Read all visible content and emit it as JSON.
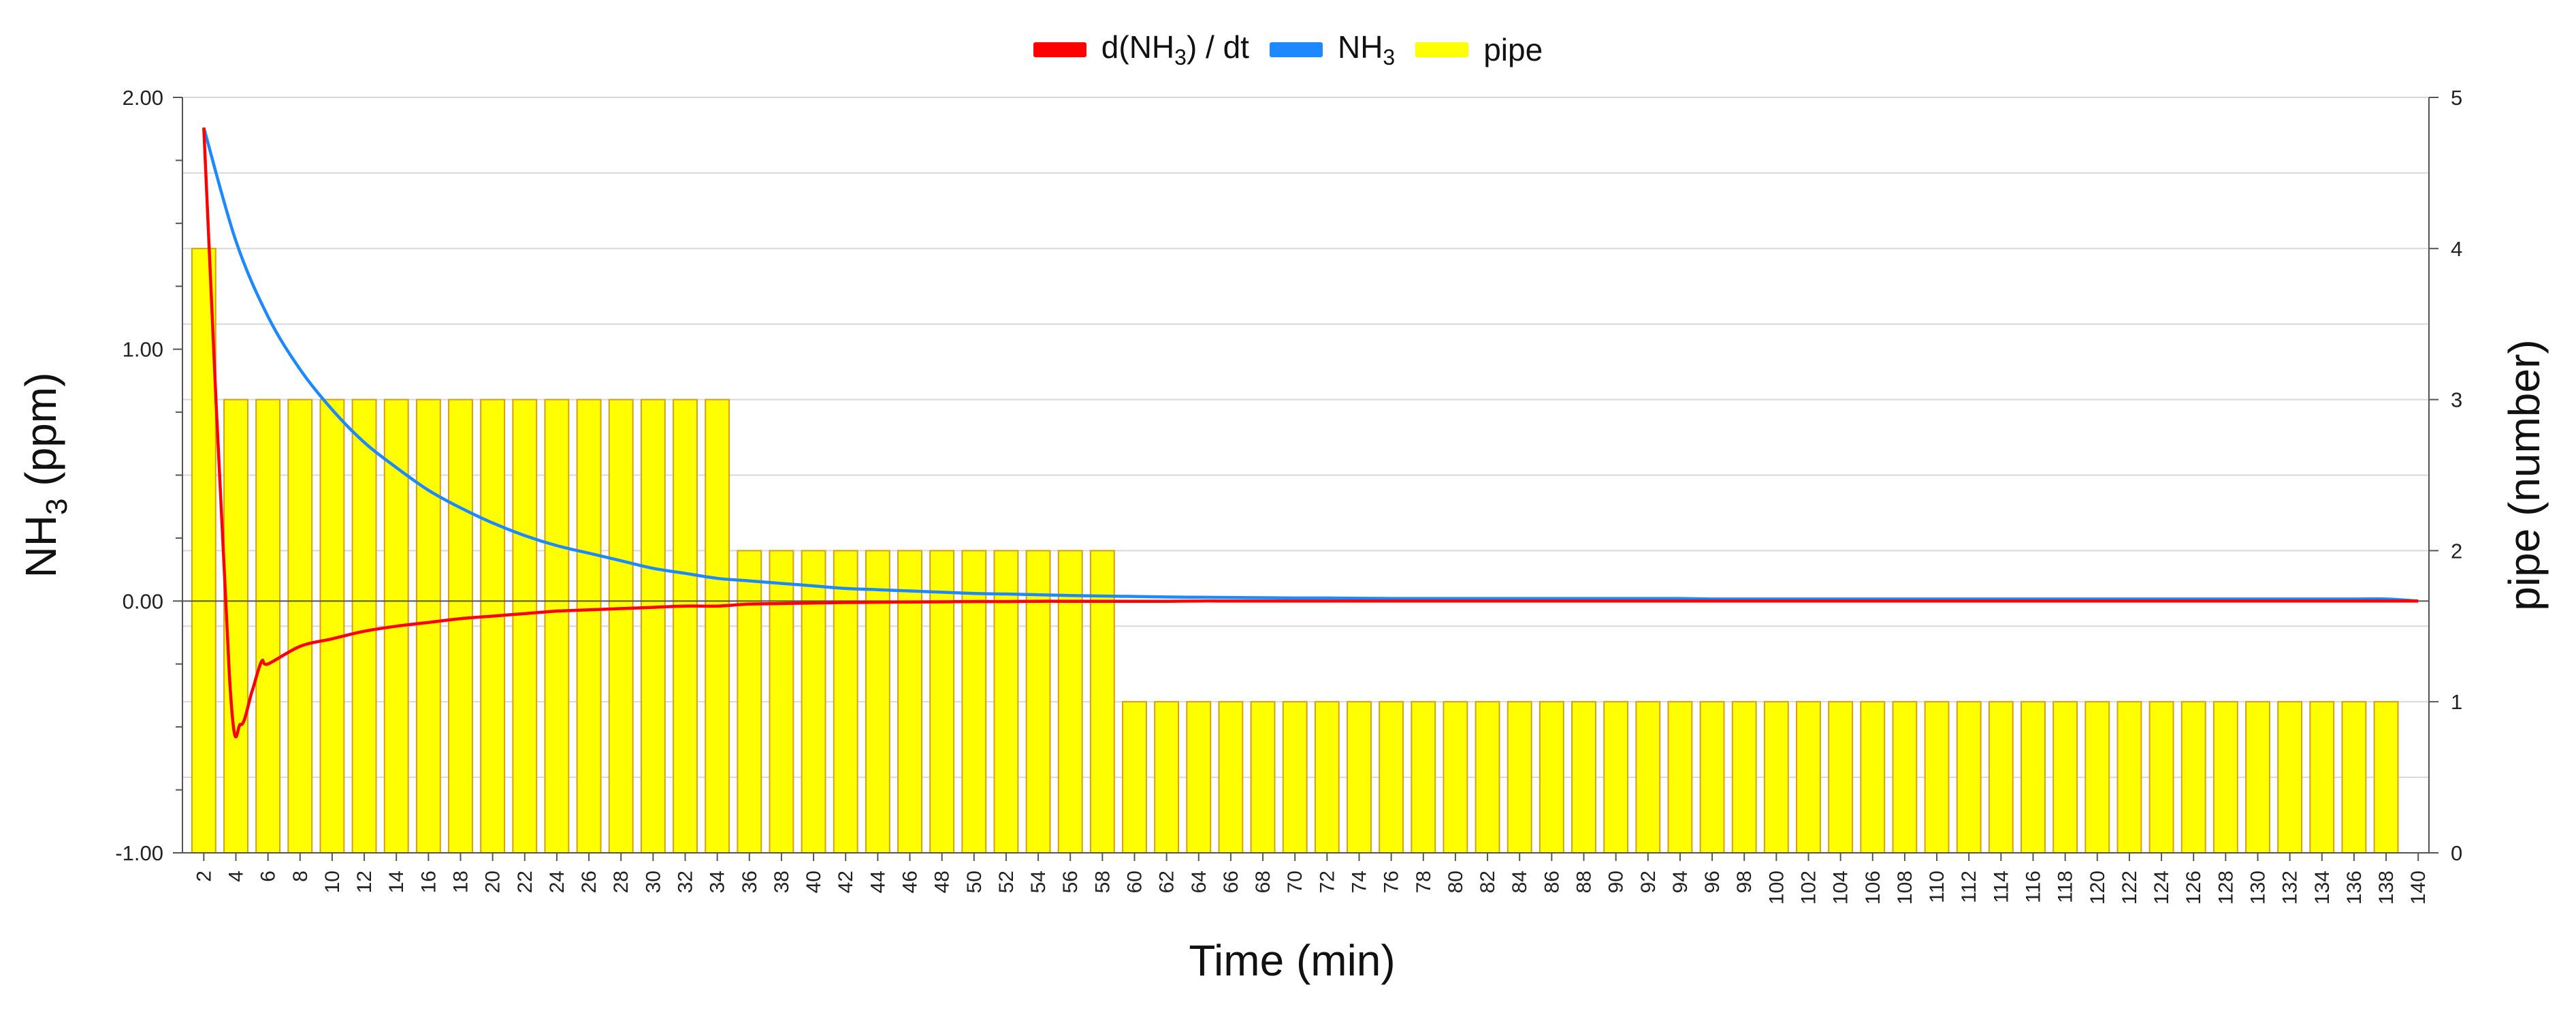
{
  "legend": [
    {
      "label_main": "d(NH",
      "label_sub": "3",
      "label_tail": ") / dt",
      "color": "#ff0000"
    },
    {
      "label_main": "NH",
      "label_sub": "3",
      "label_tail": "",
      "color": "#1e88ff"
    },
    {
      "label_main": "pipe",
      "label_sub": "",
      "label_tail": "",
      "color": "#ffff00"
    }
  ],
  "axes": {
    "x_title": "Time (min)",
    "y_left_title_main": "NH",
    "y_left_title_sub": "3",
    "y_left_title_tail": " (ppm)",
    "y_right_title": "pipe (number)"
  },
  "colors": {
    "bar_fill": "#ffff00",
    "bar_stroke": "#d4a017",
    "derivative_line": "#ff0000",
    "nh3_line": "#1e88ff",
    "grid": "#d8d8d8",
    "axis": "#555555"
  },
  "chart_data": {
    "type": "bar",
    "xlabel": "Time (min)",
    "ylabel": "NH3 (ppm)",
    "y2label": "pipe (number)",
    "ylim": [
      -1,
      2
    ],
    "y_ticks": [
      "-1.00",
      "0.00",
      "1.00",
      "2.00"
    ],
    "y_tick_values": [
      -1,
      0,
      1,
      2
    ],
    "y2lim": [
      0,
      5
    ],
    "y2_ticks": [
      "0",
      "1",
      "2",
      "3",
      "4",
      "5"
    ],
    "y2_tick_values": [
      0,
      1,
      2,
      3,
      4,
      5
    ],
    "grid": true,
    "legend_position": "top-center",
    "x": [
      2,
      4,
      6,
      8,
      10,
      12,
      14,
      16,
      18,
      20,
      22,
      24,
      26,
      28,
      30,
      32,
      34,
      36,
      38,
      40,
      42,
      44,
      46,
      48,
      50,
      52,
      54,
      56,
      58,
      60,
      62,
      64,
      66,
      68,
      70,
      72,
      74,
      76,
      78,
      80,
      82,
      84,
      86,
      88,
      90,
      92,
      94,
      96,
      98,
      100,
      102,
      104,
      106,
      108,
      110,
      112,
      114,
      116,
      118,
      120,
      122,
      124,
      126,
      128,
      130,
      132,
      134,
      136,
      138,
      140
    ],
    "x_tick_labels": [
      "2",
      "4",
      "6",
      "8",
      "10",
      "12",
      "14",
      "16",
      "18",
      "20",
      "22",
      "24",
      "26",
      "28",
      "30",
      "32",
      "34",
      "36",
      "38",
      "40",
      "42",
      "44",
      "46",
      "48",
      "50",
      "52",
      "54",
      "56",
      "58",
      "60",
      "62",
      "64",
      "66",
      "68",
      "70",
      "72",
      "74",
      "76",
      "78",
      "80",
      "82",
      "84",
      "86",
      "88",
      "90",
      "92",
      "94",
      "96",
      "98",
      "100",
      "102",
      "104",
      "106",
      "108",
      "110",
      "112",
      "114",
      "116",
      "118",
      "120",
      "122",
      "124",
      "126",
      "128",
      "130",
      "132",
      "134",
      "136",
      "138",
      "140"
    ],
    "series": [
      {
        "name": "pipe",
        "type": "bar",
        "axis": "right",
        "values": [
          4,
          3,
          3,
          3,
          3,
          3,
          3,
          3,
          3,
          3,
          3,
          3,
          3,
          3,
          3,
          3,
          3,
          2,
          2,
          2,
          2,
          2,
          2,
          2,
          2,
          2,
          2,
          2,
          2,
          1,
          1,
          1,
          1,
          1,
          1,
          1,
          1,
          1,
          1,
          1,
          1,
          1,
          1,
          1,
          1,
          1,
          1,
          1,
          1,
          1,
          1,
          1,
          1,
          1,
          1,
          1,
          1,
          1,
          1,
          1,
          1,
          1,
          1,
          1,
          1,
          1,
          1,
          1,
          1,
          0
        ]
      },
      {
        "name": "NH3",
        "type": "line",
        "axis": "left",
        "values": [
          1.88,
          1.43,
          1.13,
          0.92,
          0.76,
          0.63,
          0.53,
          0.44,
          0.37,
          0.31,
          0.26,
          0.22,
          0.19,
          0.16,
          0.13,
          0.11,
          0.09,
          0.08,
          0.07,
          0.06,
          0.05,
          0.045,
          0.04,
          0.035,
          0.03,
          0.028,
          0.025,
          0.022,
          0.02,
          0.018,
          0.016,
          0.015,
          0.014,
          0.013,
          0.012,
          0.012,
          0.011,
          0.01,
          0.01,
          0.01,
          0.01,
          0.01,
          0.01,
          0.01,
          0.01,
          0.01,
          0.01,
          0.008,
          0.008,
          0.008,
          0.008,
          0.008,
          0.008,
          0.008,
          0.008,
          0.008,
          0.008,
          0.008,
          0.008,
          0.008,
          0.008,
          0.008,
          0.008,
          0.008,
          0.008,
          0.008,
          0.008,
          0.008,
          0.008,
          0.0
        ]
      },
      {
        "name": "d(NH3) / dt",
        "type": "line",
        "axis": "left",
        "values": [
          1.88,
          -0.35,
          -0.25,
          -0.18,
          -0.15,
          -0.12,
          -0.1,
          -0.085,
          -0.07,
          -0.06,
          -0.05,
          -0.04,
          -0.035,
          -0.03,
          -0.025,
          -0.02,
          -0.02,
          -0.012,
          -0.01,
          -0.008,
          -0.006,
          -0.005,
          -0.004,
          -0.003,
          -0.002,
          -0.002,
          -0.001,
          -0.001,
          -0.001,
          -0.001,
          -0.001,
          0,
          0,
          0,
          0,
          0,
          0,
          0,
          0,
          0,
          0,
          0,
          0,
          0,
          0,
          0,
          0,
          0,
          0,
          0,
          0,
          0,
          0,
          0,
          0,
          0,
          0,
          0,
          0,
          0,
          0,
          0,
          0,
          0,
          0,
          0,
          0,
          0,
          0,
          0
        ]
      }
    ]
  }
}
